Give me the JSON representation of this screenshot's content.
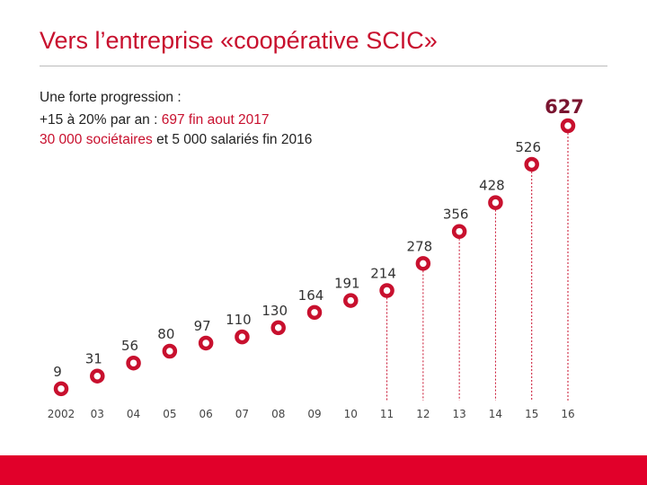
{
  "title": "Vers l’entreprise «coopérative SCIC»",
  "subtitle": {
    "line1": "Une forte progression :",
    "line2_prefix": "+15 à 20% par an : ",
    "line2_highlight": "697 fin aout 2017",
    "line3_highlight": "30 000 sociétaires",
    "line3_suffix": " et 5 000 salariés fin 2016"
  },
  "colors": {
    "accent": "#c8102e",
    "band": "#e1002a",
    "label": "#333333",
    "dash": "#c8102e"
  },
  "chart_data": {
    "type": "scatter",
    "categories": [
      "2002",
      "03",
      "04",
      "05",
      "06",
      "07",
      "08",
      "09",
      "10",
      "11",
      "12",
      "13",
      "14",
      "15",
      "16"
    ],
    "values": [
      9,
      31,
      56,
      80,
      97,
      110,
      130,
      164,
      191,
      214,
      278,
      356,
      428,
      526,
      627
    ],
    "value_labels": [
      "9",
      "31",
      "56",
      "80",
      "97",
      "110",
      "130",
      "164",
      "191",
      "214",
      "278",
      "356",
      "428",
      "526",
      "627"
    ],
    "highlight_last": true,
    "dashed_drop_lines_from": "11",
    "marker": "ring"
  }
}
